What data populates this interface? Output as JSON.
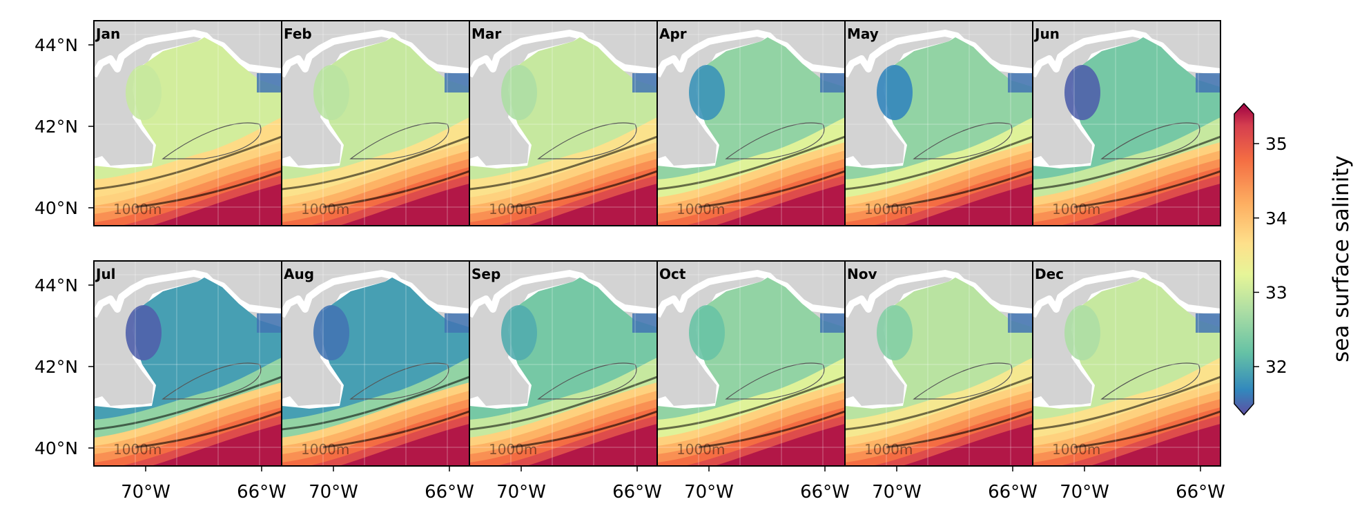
{
  "figure": {
    "months": [
      "Jan",
      "Feb",
      "Mar",
      "Apr",
      "May",
      "Jun",
      "Jul",
      "Aug",
      "Sep",
      "Oct",
      "Nov",
      "Dec"
    ],
    "lat_ticks": [
      "44°N",
      "42°N",
      "40°N"
    ],
    "lon_ticks": [
      "70°W",
      "66°W"
    ],
    "isobath_label": "1000m",
    "colorbar": {
      "label": "sea surface salinity",
      "ticks": [
        "35",
        "34",
        "33",
        "32"
      ],
      "tick_values": [
        35,
        34,
        33,
        32
      ],
      "range": [
        31.5,
        35.4
      ],
      "extend": "both",
      "colormap": "Spectral_r"
    }
  },
  "chart_data": {
    "type": "heatmap",
    "title": "",
    "xlabel": "",
    "ylabel": "",
    "variable": "sea surface salinity",
    "panels": [
      "Jan",
      "Feb",
      "Mar",
      "Apr",
      "May",
      "Jun",
      "Jul",
      "Aug",
      "Sep",
      "Oct",
      "Nov",
      "Dec"
    ],
    "x_range_lon": [
      -71.5,
      -64.7
    ],
    "y_range_lat": [
      39.5,
      44.5
    ],
    "color_range": [
      31.5,
      35.4
    ],
    "gulf_of_maine_interior_approx": [
      33.1,
      33.0,
      33.0,
      32.6,
      32.6,
      32.4,
      32.0,
      32.0,
      32.4,
      32.6,
      32.9,
      33.0
    ],
    "western_coastal_minimum_approx": [
      33.0,
      32.9,
      32.8,
      31.9,
      31.8,
      31.6,
      31.6,
      31.7,
      32.1,
      32.3,
      32.5,
      32.8
    ],
    "offshore_slope_approx": [
      35.3,
      35.3,
      35.3,
      35.3,
      35.3,
      35.3,
      35.3,
      35.3,
      35.3,
      35.3,
      35.3,
      35.3
    ]
  }
}
